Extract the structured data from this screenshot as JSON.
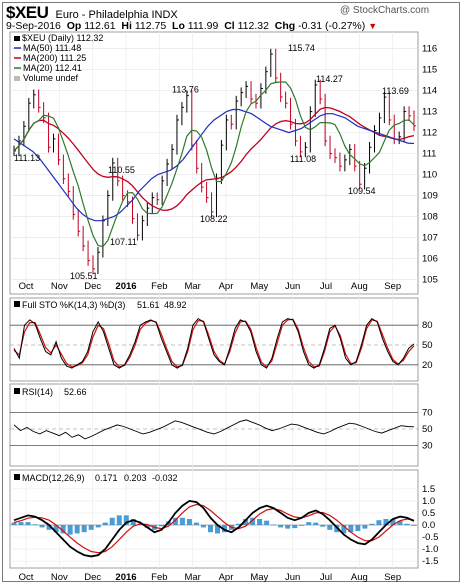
{
  "header": {
    "symbol": "$XEU",
    "name": "Euro - Philadelphia INDX",
    "brand": "@ StockCharts.com",
    "date": "9-Sep-2016",
    "open_label": "Op",
    "open": "112.61",
    "high_label": "Hi",
    "high": "112.75",
    "low_label": "Lo",
    "low": "111.99",
    "close_label": "Cl",
    "close": "112.32",
    "change_label": "Chg",
    "change": "-0.31 (-0.27%)",
    "change_icon": "down-arrow-icon",
    "change_color": "#cc0000"
  },
  "legend": {
    "price": "$XEU (Daily) 112.32",
    "ma50": "MA(50) 111.48",
    "ma200": "MA(200) 111.25",
    "ma20": "MA(20) 112.41",
    "volume": "Volume undef"
  },
  "sto_legend": {
    "label": "Full STO %K(14,3) %D(3)",
    "k": "51.61",
    "d": "48.92"
  },
  "rsi_legend": {
    "label": "RSI(14)",
    "value": "52.66"
  },
  "macd_legend": {
    "label": "MACD(12,26,9)",
    "macd": "0.171",
    "signal": "0.203",
    "hist": "-0.032"
  },
  "colors": {
    "ma50": "#1f2fbf",
    "ma200": "#c00020",
    "ma20": "#2d7a2d",
    "bar": "#000000",
    "hist": "#2a8ccc",
    "signal": "#d01010",
    "k": "#000000"
  },
  "chart_data": [
    {
      "type": "line",
      "title": "$XEU (Daily) 112.32",
      "months": [
        "Oct",
        "Nov",
        "Dec",
        "2016",
        "Feb",
        "Mar",
        "Apr",
        "May",
        "Jun",
        "Jul",
        "Aug",
        "Sep"
      ],
      "ylim": [
        104.5,
        116.6
      ],
      "yticks": [
        105,
        106,
        107,
        108,
        109,
        110,
        111,
        112,
        113,
        114,
        115,
        116
      ],
      "annotations": [
        {
          "label": "111.13",
          "value": 111.13,
          "x": "Sep"
        },
        {
          "label": "110.55",
          "value": 110.55,
          "x": "Dec"
        },
        {
          "label": "107.11",
          "value": 107.11,
          "x": "Dec"
        },
        {
          "label": "105.51",
          "value": 105.51,
          "x": "Nov"
        },
        {
          "label": "113.76",
          "value": 113.76,
          "x": "Feb"
        },
        {
          "label": "108.22",
          "value": 108.22,
          "x": "Mar"
        },
        {
          "label": "115.74",
          "value": 115.74,
          "x": "May"
        },
        {
          "label": "114.27",
          "value": 114.27,
          "x": "Jun"
        },
        {
          "label": "111.08",
          "value": 111.08,
          "x": "Jun"
        },
        {
          "label": "109.54",
          "value": 109.54,
          "x": "Jul"
        },
        {
          "label": "113.69",
          "value": 113.69,
          "x": "Aug"
        }
      ],
      "series": [
        {
          "name": "$XEU (Daily)",
          "type": "ohlc",
          "values": [
            111.13,
            111.6,
            112.3,
            113.4,
            113.8,
            113.2,
            112.7,
            111.3,
            111.7,
            110.7,
            109.8,
            109.2,
            108.1,
            107.3,
            106.6,
            105.9,
            105.51,
            106.3,
            107.8,
            109.0,
            110.55,
            109.7,
            109.0,
            108.7,
            107.9,
            107.11,
            107.8,
            108.4,
            108.9,
            108.8,
            109.7,
            110.5,
            111.2,
            112.6,
            113.2,
            113.76,
            111.4,
            110.3,
            109.4,
            108.9,
            108.22,
            109.8,
            111.4,
            112.6,
            112.4,
            113.5,
            113.9,
            114.2,
            113.6,
            113.4,
            114.1,
            114.9,
            115.74,
            114.6,
            113.7,
            113.4,
            112.4,
            111.6,
            111.08,
            111.3,
            113.0,
            114.27,
            113.6,
            111.6,
            111.0,
            110.8,
            110.4,
            110.7,
            111.2,
            110.4,
            109.54,
            110.3,
            111.3,
            112.1,
            112.7,
            113.69,
            112.6,
            111.7,
            111.8,
            113.0,
            112.8,
            112.32
          ]
        },
        {
          "name": "MA(50)",
          "values": [
            111.7,
            111.5,
            111.3,
            111.1,
            110.8,
            110.4,
            110.0,
            109.6,
            109.2,
            108.8,
            108.4,
            108.1,
            107.9,
            107.8,
            107.8,
            107.9,
            108.0,
            108.2,
            108.5,
            108.8,
            109.2,
            109.5,
            109.8,
            110.0,
            110.1,
            110.2,
            110.4,
            110.7,
            111.1,
            111.5,
            111.9,
            112.3,
            112.6,
            112.8,
            113.0,
            113.1,
            113.1,
            113.0,
            112.9,
            112.7,
            112.5,
            112.3,
            112.2,
            112.1,
            112.0,
            112.1,
            112.2,
            112.4,
            112.6,
            112.8,
            112.9,
            112.9,
            112.8,
            112.7,
            112.5,
            112.3,
            112.2,
            112.1,
            112.0,
            111.9,
            111.8,
            111.7,
            111.6,
            111.5,
            111.48
          ]
        }
      ]
    },
    {
      "type": "line",
      "title": "Full STO %K(14,3) %D(3) 51.61, 48.92",
      "ylim": [
        0,
        100
      ],
      "yticks": [
        20,
        50,
        80
      ],
      "series": [
        {
          "name": "%K",
          "values": [
            45,
            30,
            80,
            88,
            82,
            60,
            40,
            35,
            55,
            30,
            18,
            15,
            20,
            25,
            40,
            70,
            85,
            70,
            45,
            20,
            15,
            20,
            35,
            55,
            80,
            85,
            88,
            84,
            60,
            40,
            20,
            15,
            20,
            45,
            80,
            90,
            85,
            60,
            35,
            25,
            20,
            45,
            75,
            88,
            85,
            70,
            40,
            20,
            15,
            30,
            60,
            85,
            90,
            88,
            70,
            40,
            20,
            15,
            20,
            45,
            75,
            80,
            60,
            30,
            20,
            25,
            50,
            80,
            90,
            85,
            60,
            40,
            25,
            20,
            30,
            45,
            51.61
          ]
        },
        {
          "name": "%D",
          "values": [
            42,
            35,
            70,
            84,
            84,
            66,
            46,
            38,
            50,
            36,
            22,
            17,
            19,
            23,
            35,
            62,
            80,
            75,
            52,
            26,
            17,
            19,
            31,
            50,
            74,
            83,
            87,
            85,
            66,
            45,
            25,
            17,
            19,
            40,
            73,
            87,
            86,
            65,
            40,
            27,
            21,
            40,
            68,
            85,
            86,
            74,
            46,
            24,
            17,
            26,
            53,
            80,
            88,
            89,
            74,
            46,
            25,
            17,
            18,
            40,
            70,
            79,
            64,
            36,
            22,
            23,
            45,
            75,
            88,
            86,
            66,
            45,
            28,
            21,
            27,
            40,
            48.92
          ]
        }
      ]
    },
    {
      "type": "line",
      "title": "RSI(14) 52.66",
      "ylim": [
        10,
        90
      ],
      "yticks": [
        30,
        50,
        70
      ],
      "series": [
        {
          "name": "RSI(14)",
          "values": [
            55,
            48,
            52,
            47,
            44,
            48,
            45,
            42,
            46,
            40,
            43,
            38,
            41,
            45,
            49,
            52,
            55,
            53,
            50,
            47,
            44,
            46,
            49,
            52,
            56,
            60,
            58,
            55,
            52,
            49,
            46,
            44,
            47,
            51,
            55,
            59,
            61,
            58,
            55,
            51,
            48,
            50,
            53,
            56,
            55,
            52,
            49,
            46,
            44,
            47,
            51,
            54,
            57,
            56,
            53,
            50,
            47,
            45,
            48,
            51,
            54,
            53,
            52.66
          ]
        }
      ]
    },
    {
      "type": "line",
      "title": "MACD(12,26,9) 0.171, 0.203, -0.032",
      "ylim": [
        -1.7,
        1.7
      ],
      "yticks": [
        -1.5,
        -1.0,
        -0.5,
        0.0,
        0.5,
        1.0,
        1.5
      ],
      "series": [
        {
          "name": "MACD",
          "values": [
            0.2,
            0.3,
            0.4,
            0.35,
            0.2,
            0.0,
            -0.3,
            -0.6,
            -0.9,
            -1.1,
            -1.25,
            -1.3,
            -1.25,
            -1.0,
            -0.6,
            -0.2,
            0.1,
            0.2,
            0.1,
            -0.1,
            -0.3,
            -0.2,
            0.1,
            0.5,
            0.8,
            1.0,
            0.95,
            0.7,
            0.3,
            0.0,
            -0.2,
            -0.3,
            -0.1,
            0.2,
            0.5,
            0.7,
            0.8,
            0.7,
            0.5,
            0.3,
            0.2,
            0.3,
            0.5,
            0.6,
            0.45,
            0.2,
            -0.1,
            -0.4,
            -0.6,
            -0.75,
            -0.8,
            -0.6,
            -0.3,
            0.0,
            0.25,
            0.35,
            0.3,
            0.171
          ]
        },
        {
          "name": "Signal",
          "values": [
            0.1,
            0.18,
            0.28,
            0.32,
            0.3,
            0.2,
            0.0,
            -0.25,
            -0.5,
            -0.75,
            -0.95,
            -1.1,
            -1.15,
            -1.1,
            -0.9,
            -0.6,
            -0.3,
            -0.05,
            0.05,
            0.02,
            -0.1,
            -0.15,
            -0.05,
            0.2,
            0.5,
            0.75,
            0.85,
            0.8,
            0.6,
            0.35,
            0.1,
            -0.1,
            -0.15,
            -0.05,
            0.2,
            0.45,
            0.62,
            0.68,
            0.6,
            0.45,
            0.33,
            0.3,
            0.38,
            0.5,
            0.52,
            0.4,
            0.2,
            -0.05,
            -0.3,
            -0.5,
            -0.65,
            -0.65,
            -0.5,
            -0.25,
            0.0,
            0.18,
            0.25,
            0.203
          ]
        }
      ]
    }
  ]
}
